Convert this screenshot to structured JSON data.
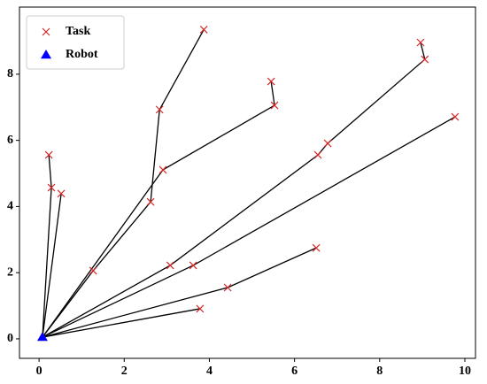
{
  "chart_data": {
    "type": "scatter",
    "series": [
      {
        "name": "Task",
        "color": "#d62728",
        "marker": "x",
        "x": [
          3.87,
          2.83,
          2.91,
          2.62,
          1.27,
          0.23,
          0.29,
          0.52,
          5.45,
          5.53,
          8.96,
          9.06,
          9.77,
          6.78,
          6.55,
          3.08,
          3.62,
          6.51,
          4.43,
          3.78
        ],
        "y": [
          9.35,
          6.93,
          5.11,
          4.14,
          2.06,
          5.56,
          4.57,
          4.39,
          7.78,
          7.06,
          8.96,
          8.45,
          6.71,
          5.91,
          5.56,
          2.22,
          2.22,
          2.75,
          1.55,
          0.91
        ]
      },
      {
        "name": "Robot",
        "color": "#0000ff",
        "marker": "triangle",
        "x": [
          0.08
        ],
        "y": [
          0.05
        ]
      }
    ],
    "lines": [
      {
        "color": "#000000",
        "x": [
          0.08,
          0.29,
          0.23
        ],
        "y": [
          0.05,
          4.57,
          5.56
        ]
      },
      {
        "color": "#000000",
        "x": [
          0.08,
          0.52
        ],
        "y": [
          0.05,
          4.39
        ]
      },
      {
        "color": "#000000",
        "x": [
          0.08,
          1.27,
          2.62,
          2.83,
          3.87
        ],
        "y": [
          0.05,
          2.06,
          4.14,
          6.93,
          9.35
        ]
      },
      {
        "color": "#000000",
        "x": [
          0.08,
          2.91,
          5.53,
          5.45
        ],
        "y": [
          0.05,
          5.11,
          7.06,
          7.78
        ]
      },
      {
        "color": "#000000",
        "x": [
          0.08,
          3.08,
          6.55,
          6.78,
          9.06,
          8.96
        ],
        "y": [
          0.05,
          2.22,
          5.56,
          5.91,
          8.45,
          8.96
        ]
      },
      {
        "color": "#000000",
        "x": [
          0.08,
          3.62,
          9.77
        ],
        "y": [
          0.05,
          2.22,
          6.71
        ]
      },
      {
        "color": "#000000",
        "x": [
          0.08,
          4.43,
          6.51
        ],
        "y": [
          0.05,
          1.55,
          2.75
        ]
      },
      {
        "color": "#000000",
        "x": [
          0.08,
          3.78
        ],
        "y": [
          0.05,
          0.91
        ]
      }
    ],
    "xlim": [
      -0.46,
      10.25
    ],
    "ylim": [
      -0.59,
      10.03
    ],
    "xticks": [
      0,
      2,
      4,
      6,
      8,
      10
    ],
    "yticks": [
      0,
      2,
      4,
      6,
      8
    ],
    "grid": false,
    "legend": "upper left"
  }
}
